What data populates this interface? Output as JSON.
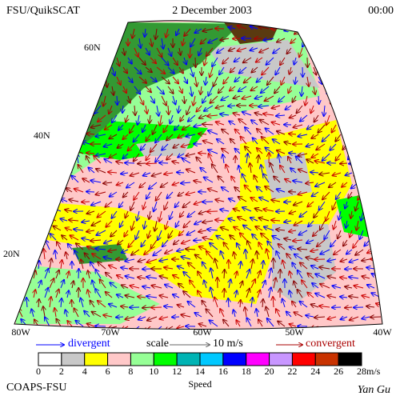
{
  "header": {
    "left": "FSU/QuikSCAT",
    "center": "2 December 2003",
    "right": "00:00"
  },
  "lat_labels": [
    "60N",
    "40N",
    "20N"
  ],
  "lon_labels": [
    "80W",
    "70W",
    "60W",
    "50W",
    "40W"
  ],
  "legend": {
    "divergent": "divergent",
    "scale": "scale",
    "scale_value": "10 m/s",
    "convergent": "convergent"
  },
  "colorbar": {
    "colors": [
      "#ffffff",
      "#c8c8c8",
      "#ffff00",
      "#ffc8c8",
      "#96ff96",
      "#00ff00",
      "#00b4b4",
      "#00c8ff",
      "#0000ff",
      "#ff00ff",
      "#c896ff",
      "#ff0000",
      "#c83200",
      "#000000"
    ],
    "ticks": [
      "0",
      "2",
      "4",
      "6",
      "8",
      "10",
      "12",
      "14",
      "16",
      "18",
      "20",
      "22",
      "24",
      "26",
      "28"
    ],
    "unit": "m/s",
    "title": "Speed"
  },
  "footer": {
    "left": "COAPS-FSU",
    "right": "Yan Gu"
  }
}
